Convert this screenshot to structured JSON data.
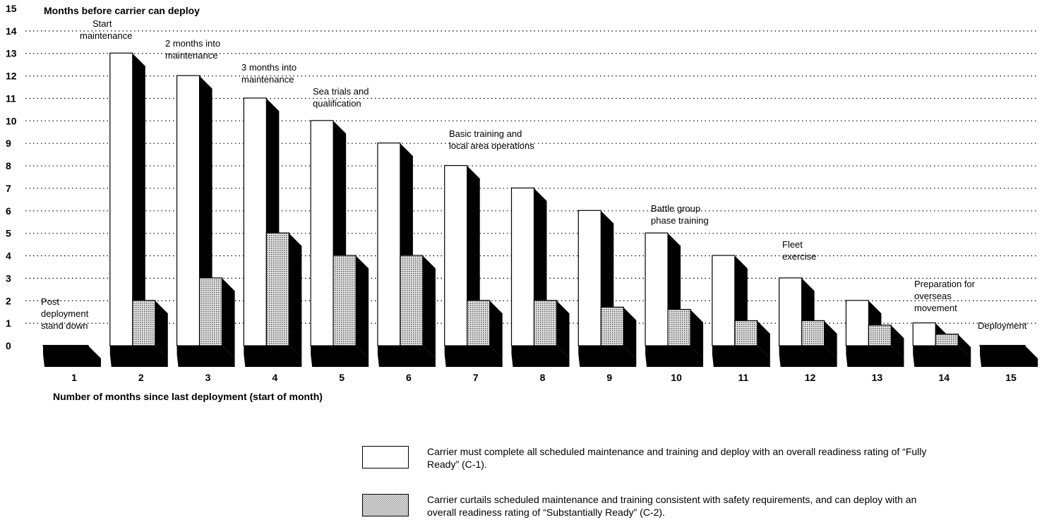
{
  "chart_data": {
    "type": "bar3d",
    "title": "Months before carrier can deploy",
    "x_label": "Number of months since last deployment (start of month)",
    "categories": [
      "1",
      "2",
      "3",
      "4",
      "5",
      "6",
      "7",
      "8",
      "9",
      "10",
      "11",
      "12",
      "13",
      "14",
      "15"
    ],
    "series": [
      {
        "name": "Carrier must complete all scheduled maintenance and training and deploy with an overall readiness rating of “Fully Ready” (C-1).",
        "color": "#ffffff",
        "values": [
          0,
          13,
          12,
          11,
          10,
          9,
          8,
          7,
          6,
          5,
          4,
          3,
          2,
          1,
          0
        ]
      },
      {
        "name": "Carrier curtails scheduled maintenance and training consistent with safety requirements, and can deploy with an overall readiness rating of “Substantially Ready” (C-2).",
        "color": "#9a9a9a",
        "values": [
          0,
          2,
          3,
          5,
          4,
          4,
          2,
          2,
          1.7,
          1.6,
          1.1,
          1.1,
          0.9,
          0.5,
          0
        ]
      }
    ],
    "ylim": [
      0,
      15
    ],
    "yticks": [
      0,
      1,
      2,
      3,
      4,
      5,
      6,
      7,
      8,
      9,
      10,
      11,
      12,
      13,
      14,
      15
    ],
    "grid": true,
    "annotations": [
      [
        "Post",
        "deployment",
        "stand down"
      ],
      [
        "Start",
        "maintenance"
      ],
      [
        "2 months into",
        "maintenance"
      ],
      [
        "3 months into",
        "maintenance"
      ],
      [
        "Sea trials and",
        "qualification"
      ],
      [
        "Basic training and",
        "local area operations"
      ],
      [
        "Battle group",
        "phase training"
      ],
      [
        "Fleet",
        "exercise"
      ],
      [
        "Preparation for",
        "overseas",
        "movement"
      ],
      [
        "Deployment"
      ]
    ]
  }
}
